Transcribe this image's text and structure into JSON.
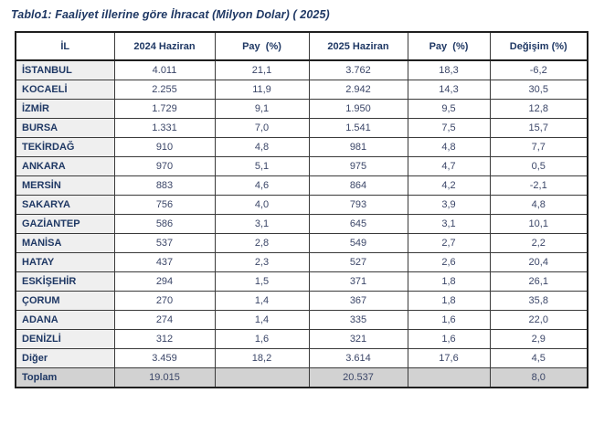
{
  "title": "Tablo1: Faaliyet illerine göre İhracat (Milyon Dolar) ( 2025)",
  "colors": {
    "title_text": "#1f3864",
    "number_text": "#3b4668",
    "border": "#3a3a3a",
    "row_label_background": "#efefef",
    "total_row_background": "#d2d2d2"
  },
  "table": {
    "columns": [
      "İL",
      "2024 Haziran",
      "Pay  (%)",
      "2025 Haziran",
      "Pay  (%)",
      "Değişim (%)"
    ],
    "rows": [
      [
        "İSTANBUL",
        "4.011",
        "21,1",
        "3.762",
        "18,3",
        "-6,2"
      ],
      [
        "KOCAELİ",
        "2.255",
        "11,9",
        "2.942",
        "14,3",
        "30,5"
      ],
      [
        "İZMİR",
        "1.729",
        "9,1",
        "1.950",
        "9,5",
        "12,8"
      ],
      [
        "BURSA",
        "1.331",
        "7,0",
        "1.541",
        "7,5",
        "15,7"
      ],
      [
        "TEKİRDAĞ",
        "910",
        "4,8",
        "981",
        "4,8",
        "7,7"
      ],
      [
        "ANKARA",
        "970",
        "5,1",
        "975",
        "4,7",
        "0,5"
      ],
      [
        "MERSİN",
        "883",
        "4,6",
        "864",
        "4,2",
        "-2,1"
      ],
      [
        "SAKARYA",
        "756",
        "4,0",
        "793",
        "3,9",
        "4,8"
      ],
      [
        "GAZİANTEP",
        "586",
        "3,1",
        "645",
        "3,1",
        "10,1"
      ],
      [
        "MANİSA",
        "537",
        "2,8",
        "549",
        "2,7",
        "2,2"
      ],
      [
        "HATAY",
        "437",
        "2,3",
        "527",
        "2,6",
        "20,4"
      ],
      [
        "ESKİŞEHİR",
        "294",
        "1,5",
        "371",
        "1,8",
        "26,1"
      ],
      [
        "ÇORUM",
        "270",
        "1,4",
        "367",
        "1,8",
        "35,8"
      ],
      [
        "ADANA",
        "274",
        "1,4",
        "335",
        "1,6",
        "22,0"
      ],
      [
        "DENİZLİ",
        "312",
        "1,6",
        "321",
        "1,6",
        "2,9"
      ],
      [
        "Diğer",
        "3.459",
        "18,2",
        "3.614",
        "17,6",
        "4,5"
      ]
    ],
    "total_row": [
      "Toplam",
      "19.015",
      "",
      "20.537",
      "",
      "8,0"
    ]
  }
}
